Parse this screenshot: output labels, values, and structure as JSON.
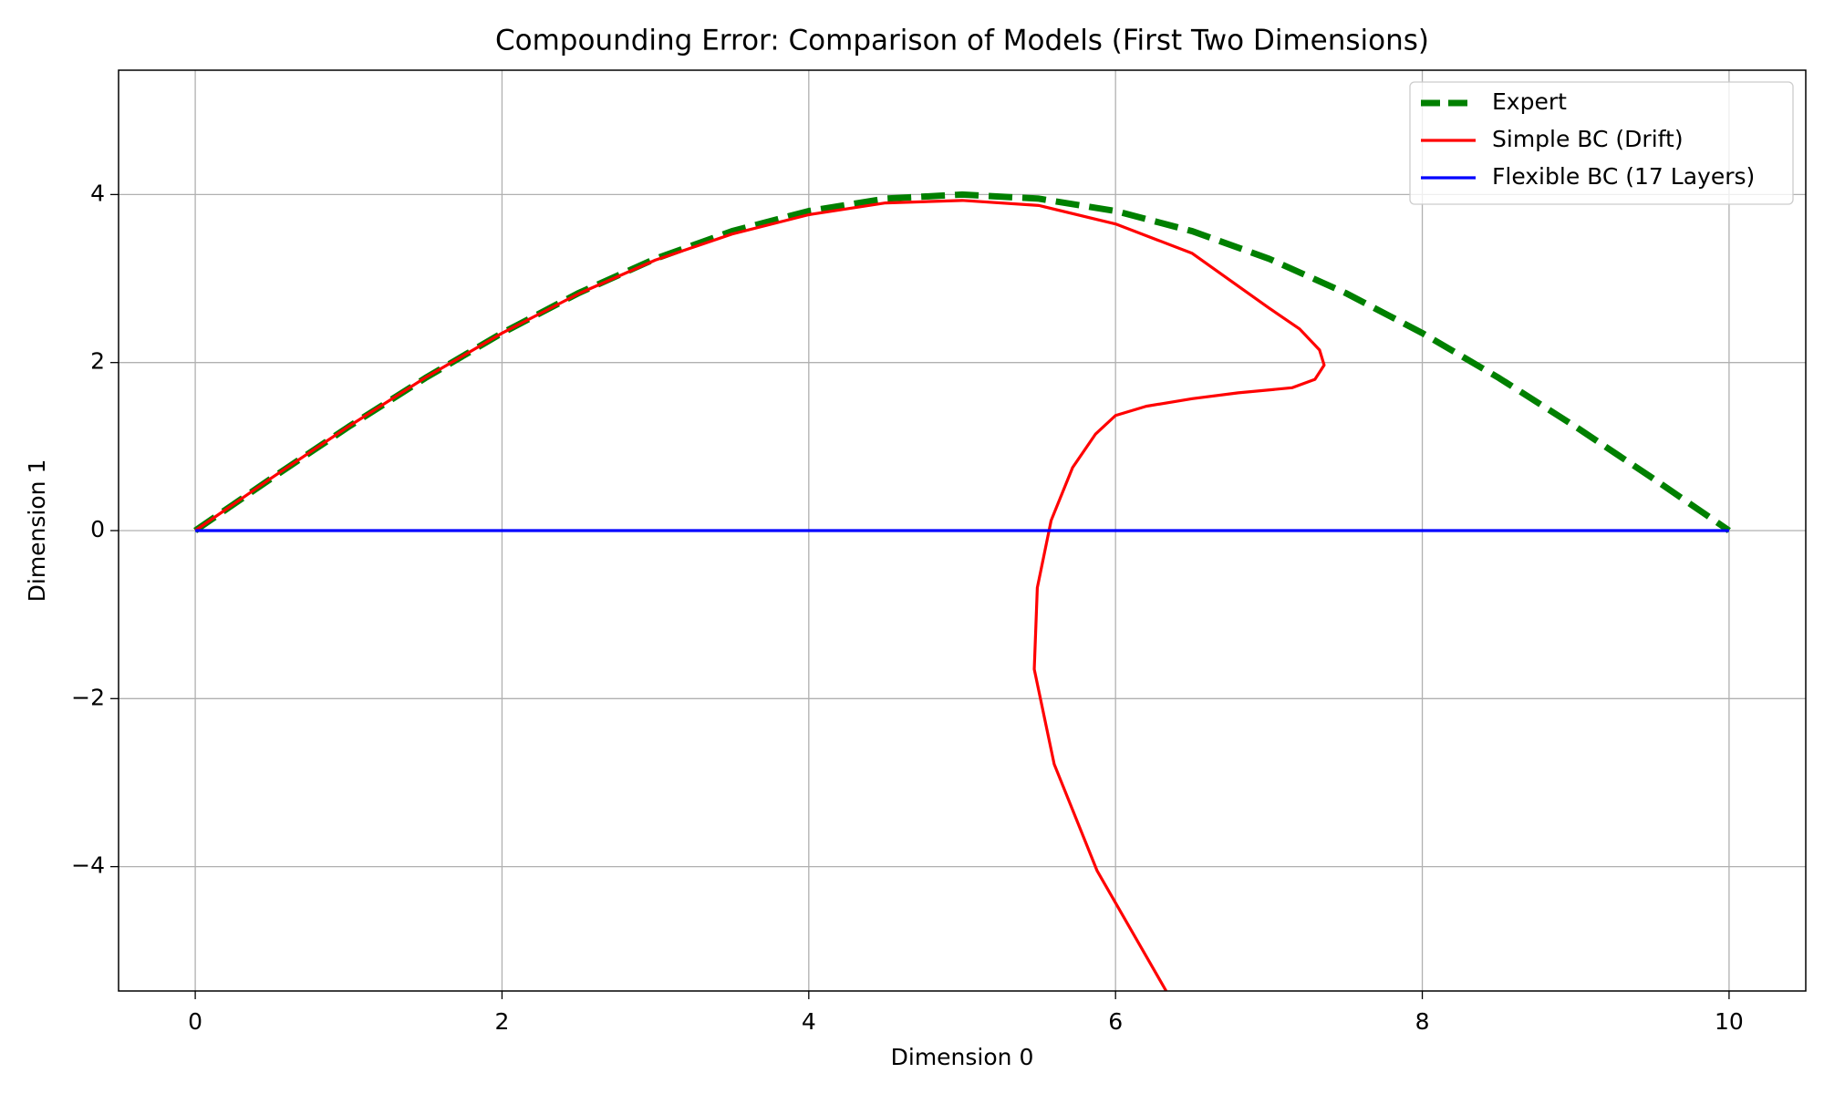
{
  "chart_data": {
    "type": "line",
    "title": "Compounding Error: Comparison of Models (First Two Dimensions)",
    "x_label": "Dimension 0",
    "y_label": "Dimension 1",
    "xlim": [
      -0.5,
      10.5
    ],
    "ylim": [
      -5.48,
      5.48
    ],
    "xticks": [
      0,
      2,
      4,
      6,
      8,
      10
    ],
    "yticks": [
      {
        "value": -4,
        "label": "−4"
      },
      {
        "value": -2,
        "label": "−2"
      },
      0,
      2,
      4
    ],
    "grid": true,
    "legend": "upper right",
    "series": [
      {
        "name": "Expert",
        "color": "#008000",
        "style": "dashed",
        "x": [
          0,
          0.5,
          1,
          1.5,
          2,
          2.5,
          3,
          3.5,
          4,
          4.5,
          5,
          5.5,
          6,
          6.5,
          7,
          7.5,
          8,
          8.5,
          9,
          9.5,
          10
        ],
        "values": [
          0,
          0.626,
          1.236,
          1.816,
          2.351,
          2.828,
          3.236,
          3.564,
          3.804,
          3.951,
          4,
          3.951,
          3.804,
          3.564,
          3.236,
          2.828,
          2.351,
          1.816,
          1.236,
          0.626,
          0
        ]
      },
      {
        "name": "Simple BC (Drift)",
        "color": "#ff0000",
        "style": "solid",
        "x": [
          0,
          0.5,
          1,
          1.5,
          2,
          2.5,
          3,
          3.5,
          4,
          4.5,
          5,
          5.5,
          6,
          6.5,
          7,
          7.2,
          7.33,
          7.36,
          7.3,
          7.15,
          6.8,
          6.5,
          6.2,
          6.0,
          5.87,
          5.72,
          5.58,
          5.49,
          5.47,
          5.6,
          5.88,
          6.33
        ],
        "values": [
          0,
          0.63,
          1.24,
          1.82,
          2.35,
          2.82,
          3.22,
          3.53,
          3.76,
          3.9,
          3.93,
          3.87,
          3.65,
          3.3,
          2.65,
          2.4,
          2.15,
          1.97,
          1.8,
          1.7,
          1.64,
          1.57,
          1.48,
          1.37,
          1.15,
          0.75,
          0.12,
          -0.68,
          -1.65,
          -2.78,
          -4.05,
          -5.48
        ]
      },
      {
        "name": "Flexible BC (17 Layers)",
        "color": "#0000ff",
        "style": "solid",
        "x": [
          0,
          10
        ],
        "values": [
          0,
          0
        ]
      }
    ]
  }
}
